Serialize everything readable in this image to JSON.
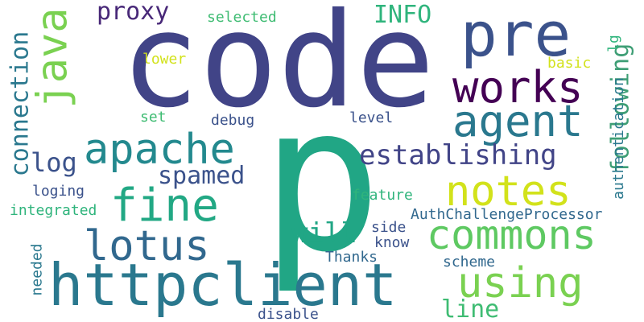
{
  "words": [
    {
      "text": "p",
      "color": "#21a685",
      "rotated": false
    },
    {
      "text": "code",
      "color": "#414487",
      "rotated": false
    },
    {
      "text": "httpclient",
      "color": "#2a788e",
      "rotated": false
    },
    {
      "text": "pre",
      "color": "#3b528b",
      "rotated": false
    },
    {
      "text": "works",
      "color": "#440154",
      "rotated": false
    },
    {
      "text": "agent",
      "color": "#2a788e",
      "rotated": false
    },
    {
      "text": "apache",
      "color": "#23898e",
      "rotated": false
    },
    {
      "text": "notes",
      "color": "#d2e21b",
      "rotated": false
    },
    {
      "text": "commons",
      "color": "#5ec962",
      "rotated": false
    },
    {
      "text": "using",
      "color": "#7ad151",
      "rotated": false
    },
    {
      "text": "fine",
      "color": "#22a884",
      "rotated": false
    },
    {
      "text": "lotus",
      "color": "#31688e",
      "rotated": false
    },
    {
      "text": "java",
      "color": "#7ad151",
      "rotated": true
    },
    {
      "text": "establishing",
      "color": "#414487",
      "rotated": false
    },
    {
      "text": "proxy",
      "color": "#482878",
      "rotated": false
    },
    {
      "text": "INFO",
      "color": "#2fb47c",
      "rotated": false
    },
    {
      "text": "connection",
      "color": "#2a788e",
      "rotated": true
    },
    {
      "text": "following",
      "color": "#3e9e75",
      "rotated": true
    },
    {
      "text": "log",
      "color": "#3b528b",
      "rotated": false
    },
    {
      "text": "spamed",
      "color": "#3b528b",
      "rotated": false
    },
    {
      "text": "will",
      "color": "#21a685",
      "rotated": false
    },
    {
      "text": "line",
      "color": "#3fbc73",
      "rotated": false
    },
    {
      "text": "selected",
      "color": "#3fbc73",
      "rotated": false
    },
    {
      "text": "lower",
      "color": "#d2e21b",
      "rotated": false
    },
    {
      "text": "set",
      "color": "#3fbc73",
      "rotated": false
    },
    {
      "text": "debug",
      "color": "#3b528b",
      "rotated": false
    },
    {
      "text": "level",
      "color": "#3b528b",
      "rotated": false
    },
    {
      "text": "basic",
      "color": "#d2e21b",
      "rotated": false
    },
    {
      "text": "authentication",
      "color": "#2a788e",
      "rotated": true
    },
    {
      "text": "feature",
      "color": "#2fb47c",
      "rotated": false
    },
    {
      "text": "loging",
      "color": "#3b528b",
      "rotated": false
    },
    {
      "text": "integrated",
      "color": "#2fb47c",
      "rotated": false
    },
    {
      "text": "AuthChallengeProcessor",
      "color": "#31688e",
      "rotated": false
    },
    {
      "text": "side",
      "color": "#3b528b",
      "rotated": false
    },
    {
      "text": "know",
      "color": "#3b528b",
      "rotated": false
    },
    {
      "text": "Thanks",
      "color": "#31688e",
      "rotated": false
    },
    {
      "text": "needed",
      "color": "#2a788e",
      "rotated": true
    },
    {
      "text": "scheme",
      "color": "#31688e",
      "rotated": false
    },
    {
      "text": "disable",
      "color": "#3b528b",
      "rotated": false
    },
    {
      "text": "lg",
      "color": "#2fb47c",
      "rotated": true
    }
  ]
}
